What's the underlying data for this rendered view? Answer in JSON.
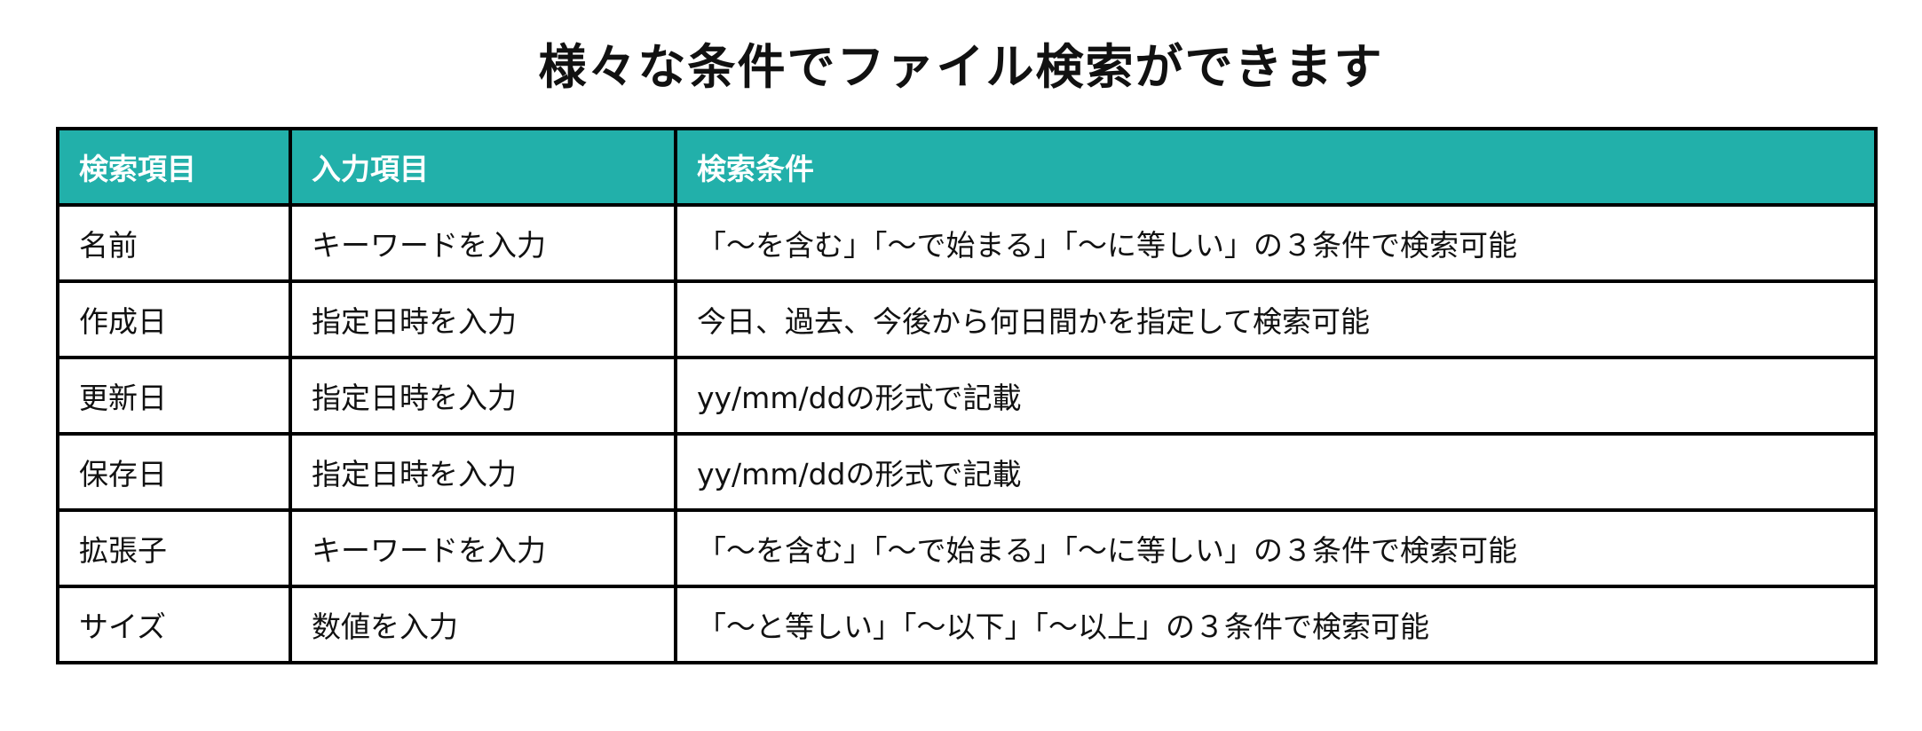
{
  "title": "様々な条件でファイル検索ができます",
  "header_color": "#22b0aa",
  "table": {
    "headers": [
      "検索項目",
      "入力項目",
      "検索条件"
    ],
    "rows": [
      [
        "名前",
        "キーワードを入力",
        "「～を含む」「～で始まる」「～に等しい」の３条件で検索可能"
      ],
      [
        "作成日",
        "指定日時を入力",
        "今日、過去、今後から何日間かを指定して検索可能"
      ],
      [
        "更新日",
        "指定日時を入力",
        "yy/mm/ddの形式で記載"
      ],
      [
        "保存日",
        "指定日時を入力",
        "yy/mm/ddの形式で記載"
      ],
      [
        "拡張子",
        "キーワードを入力",
        "「～を含む」「～で始まる」「～に等しい」の３条件で検索可能"
      ],
      [
        "サイズ",
        "数値を入力",
        "「～と等しい」「～以下」「～以上」の３条件で検索可能"
      ]
    ]
  }
}
